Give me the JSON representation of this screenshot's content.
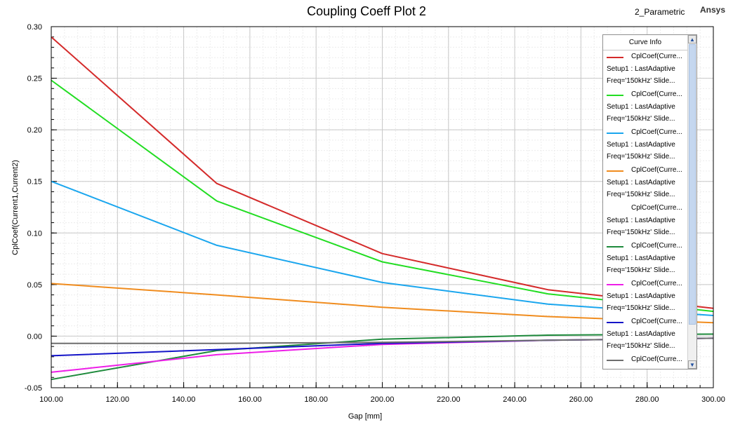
{
  "header": {
    "title": "Coupling Coeff Plot 2",
    "design_name": "2_Parametric",
    "brand": "Ansys"
  },
  "legend": {
    "title": "Curve Info",
    "scroll_up_icon": "chevron-up-icon",
    "scroll_down_icon": "chevron-down-icon"
  },
  "chart_data": {
    "type": "line",
    "title": "Coupling Coeff Plot 2",
    "xlabel": "Gap [mm]",
    "ylabel": "CplCoef(Current1,Current2)",
    "xlim": [
      100,
      300
    ],
    "ylim": [
      -0.05,
      0.3
    ],
    "xticks": [
      "100.00",
      "120.00",
      "140.00",
      "160.00",
      "180.00",
      "200.00",
      "220.00",
      "240.00",
      "260.00",
      "280.00",
      "300.00"
    ],
    "yticks": [
      "-0.05",
      "0.00",
      "0.05",
      "0.10",
      "0.15",
      "0.20",
      "0.25",
      "0.30"
    ],
    "grid": true,
    "legend_position": "top-right",
    "x": [
      100,
      150,
      200,
      250,
      300
    ],
    "series": [
      {
        "name": "CplCoef(Curre...",
        "setup": "Setup1 : LastAdaptive",
        "freq": "Freq='150kHz' Slide...",
        "color": "#d42a2a",
        "values": [
          0.29,
          0.148,
          0.08,
          0.045,
          0.027
        ]
      },
      {
        "name": "CplCoef(Curre...",
        "setup": "Setup1 : LastAdaptive",
        "freq": "Freq='150kHz' Slide...",
        "color": "#22dd22",
        "values": [
          0.248,
          0.131,
          0.072,
          0.041,
          0.024
        ]
      },
      {
        "name": "CplCoef(Curre...",
        "setup": "Setup1 : LastAdaptive",
        "freq": "Freq='150kHz' Slide...",
        "color": "#1aa6ee",
        "values": [
          0.15,
          0.088,
          0.052,
          0.031,
          0.02
        ]
      },
      {
        "name": "CplCoef(Curre...",
        "setup": "Setup1 : LastAdaptive",
        "freq": "Freq='150kHz' Slide...",
        "color": "#f08c1e",
        "values": [
          0.051,
          0.04,
          0.028,
          0.019,
          0.013
        ]
      },
      {
        "name": "CplCoef(Curre...",
        "setup": "Setup1 : LastAdaptive",
        "freq": "Freq='150kHz' Slide...",
        "color": "#ffffff",
        "values": [
          -0.007,
          -0.006,
          -0.004,
          -0.003,
          -0.002
        ]
      },
      {
        "name": "CplCoef(Curre...",
        "setup": "Setup1 : LastAdaptive",
        "freq": "Freq='150kHz' Slide...",
        "color": "#1e8a3c",
        "values": [
          -0.042,
          -0.014,
          -0.003,
          0.001,
          0.002
        ]
      },
      {
        "name": "CplCoef(Curre...",
        "setup": "Setup1 : LastAdaptive",
        "freq": "Freq='150kHz' Slide...",
        "color": "#ee1ee8",
        "values": [
          -0.035,
          -0.018,
          -0.008,
          -0.004,
          -0.002
        ]
      },
      {
        "name": "CplCoef(Curre...",
        "setup": "Setup1 : LastAdaptive",
        "freq": "Freq='150kHz' Slide...",
        "color": "#1414c8",
        "values": [
          -0.019,
          -0.013,
          -0.007,
          -0.004,
          -0.002
        ]
      },
      {
        "name": "CplCoef(Curre...",
        "setup": "",
        "freq": "",
        "color": "#6e6e6e",
        "values": [
          -0.007,
          -0.007,
          -0.006,
          -0.004,
          -0.002
        ]
      }
    ]
  }
}
